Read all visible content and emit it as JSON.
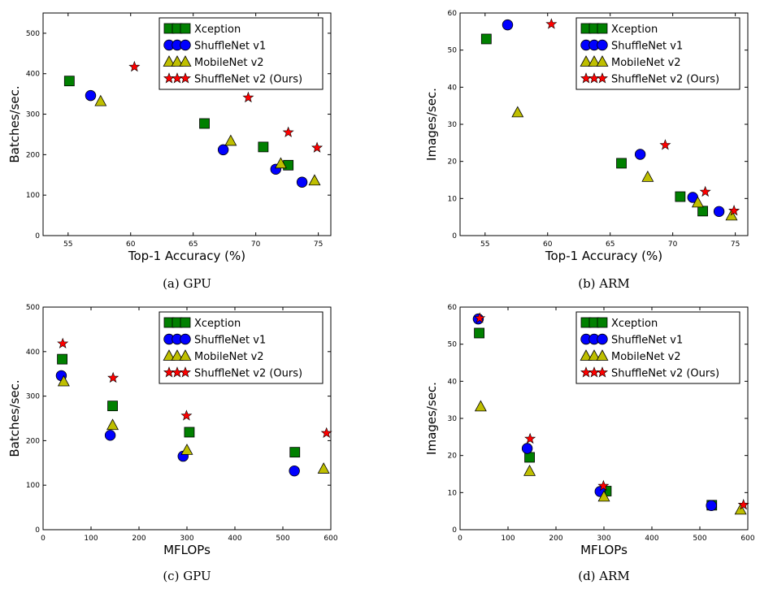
{
  "colors": {
    "Xception": "#008000",
    "ShuffleNet v1": "#0000ff",
    "MobileNet v2": "#bfbf00",
    "ShuffleNet v2 (Ours)": "#ff0000"
  },
  "chart_data": [
    {
      "type": "scatter",
      "caption": "(a) GPU",
      "xlabel": "Top-1 Accuracy (%)",
      "ylabel": "Batches/sec.",
      "xlim": [
        53,
        76
      ],
      "ylim": [
        0,
        550
      ],
      "xticks": [
        55,
        60,
        65,
        70,
        75
      ],
      "yticks": [
        0,
        100,
        200,
        300,
        400,
        500
      ],
      "legend": "top-right",
      "series": [
        {
          "name": "Xception",
          "marker": "square",
          "points": [
            [
              55.1,
              382
            ],
            [
              65.9,
              277
            ],
            [
              70.6,
              219
            ],
            [
              72.6,
              174
            ]
          ]
        },
        {
          "name": "ShuffleNet v1",
          "marker": "circle",
          "points": [
            [
              56.8,
              346
            ],
            [
              67.4,
              212
            ],
            [
              71.6,
              164
            ],
            [
              73.7,
              132
            ]
          ]
        },
        {
          "name": "MobileNet v2",
          "marker": "triangle",
          "points": [
            [
              57.6,
              332
            ],
            [
              68.0,
              234
            ],
            [
              72.0,
              178
            ],
            [
              74.7,
              136
            ]
          ]
        },
        {
          "name": "ShuffleNet v2 (Ours)",
          "marker": "star",
          "points": [
            [
              60.3,
              417
            ],
            [
              69.4,
              341
            ],
            [
              72.6,
              255
            ],
            [
              74.9,
              217
            ]
          ]
        }
      ]
    },
    {
      "type": "scatter",
      "caption": "(b) ARM",
      "xlabel": "Top-1 Accuracy (%)",
      "ylabel": "Images/sec.",
      "xlim": [
        53,
        76
      ],
      "ylim": [
        0,
        60
      ],
      "xticks": [
        55,
        60,
        65,
        70,
        75
      ],
      "yticks": [
        0,
        10,
        20,
        30,
        40,
        50,
        60
      ],
      "legend": "top-right",
      "series": [
        {
          "name": "Xception",
          "marker": "square",
          "points": [
            [
              55.1,
              53
            ],
            [
              65.9,
              19.5
            ],
            [
              70.6,
              10.5
            ],
            [
              72.4,
              6.6
            ]
          ]
        },
        {
          "name": "ShuffleNet v1",
          "marker": "circle",
          "points": [
            [
              56.8,
              56.8
            ],
            [
              67.4,
              21.9
            ],
            [
              71.6,
              10.3
            ],
            [
              73.7,
              6.5
            ]
          ]
        },
        {
          "name": "MobileNet v2",
          "marker": "triangle",
          "points": [
            [
              57.6,
              33.2
            ],
            [
              68.0,
              15.8
            ],
            [
              72.0,
              8.9
            ],
            [
              74.7,
              5.4
            ]
          ]
        },
        {
          "name": "ShuffleNet v2 (Ours)",
          "marker": "star",
          "points": [
            [
              60.3,
              57
            ],
            [
              69.4,
              24.4
            ],
            [
              72.6,
              11.8
            ],
            [
              74.9,
              6.7
            ]
          ]
        }
      ]
    },
    {
      "type": "scatter",
      "caption": "(c) GPU",
      "xlabel": "MFLOPs",
      "ylabel": "Batches/sec.",
      "xlim": [
        0,
        600
      ],
      "ylim": [
        0,
        500
      ],
      "xticks": [
        0,
        100,
        200,
        300,
        400,
        500,
        600
      ],
      "yticks": [
        0,
        100,
        200,
        300,
        400,
        500
      ],
      "legend": "top-right",
      "series": [
        {
          "name": "Xception",
          "marker": "square",
          "points": [
            [
              40,
              383
            ],
            [
              145,
              278
            ],
            [
              305,
              219
            ],
            [
              525,
              174
            ]
          ]
        },
        {
          "name": "ShuffleNet v1",
          "marker": "circle",
          "points": [
            [
              38,
              346
            ],
            [
              140,
              212
            ],
            [
              292,
              165
            ],
            [
              524,
              132
            ]
          ]
        },
        {
          "name": "MobileNet v2",
          "marker": "triangle",
          "points": [
            [
              43,
              333
            ],
            [
              145,
              235
            ],
            [
              300,
              179
            ],
            [
              585,
              137
            ]
          ]
        },
        {
          "name": "ShuffleNet v2 (Ours)",
          "marker": "star",
          "points": [
            [
              41,
              418
            ],
            [
              146,
              341
            ],
            [
              299,
              256
            ],
            [
              591,
              217
            ]
          ]
        }
      ]
    },
    {
      "type": "scatter",
      "caption": "(d) ARM",
      "xlabel": "MFLOPs",
      "ylabel": "Images/sec.",
      "xlim": [
        0,
        600
      ],
      "ylim": [
        0,
        60
      ],
      "xticks": [
        0,
        100,
        200,
        300,
        400,
        500,
        600
      ],
      "yticks": [
        0,
        10,
        20,
        30,
        40,
        50,
        60
      ],
      "legend": "top-right",
      "series": [
        {
          "name": "Xception",
          "marker": "square",
          "points": [
            [
              40,
              53
            ],
            [
              145,
              19.5
            ],
            [
              305,
              10.4
            ],
            [
              525,
              6.6
            ]
          ]
        },
        {
          "name": "ShuffleNet v1",
          "marker": "circle",
          "points": [
            [
              38,
              56.8
            ],
            [
              140,
              21.9
            ],
            [
              292,
              10.3
            ],
            [
              524,
              6.5
            ]
          ]
        },
        {
          "name": "MobileNet v2",
          "marker": "triangle",
          "points": [
            [
              43,
              33.2
            ],
            [
              145,
              15.8
            ],
            [
              300,
              8.9
            ],
            [
              585,
              5.4
            ]
          ]
        },
        {
          "name": "ShuffleNet v2 (Ours)",
          "marker": "star",
          "points": [
            [
              41,
              57
            ],
            [
              146,
              24.5
            ],
            [
              299,
              11.8
            ],
            [
              591,
              6.7
            ]
          ]
        }
      ]
    }
  ]
}
